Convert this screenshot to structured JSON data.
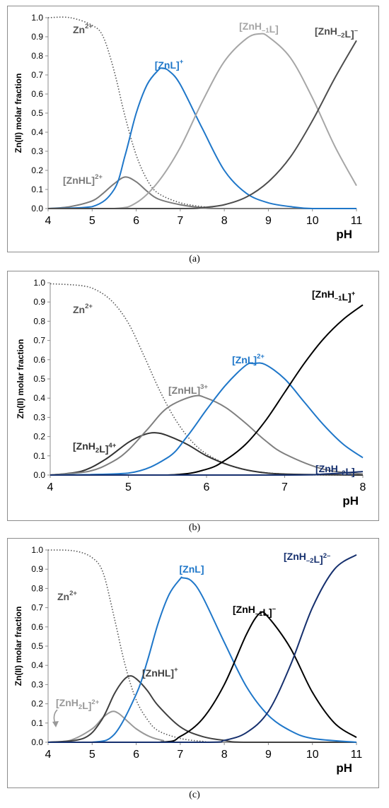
{
  "captions": [
    "(a)",
    "(b)",
    "(c)"
  ],
  "chart_data": [
    {
      "type": "line",
      "xlabel": "pH",
      "ylabel": "Zn(II) molar fraction",
      "xlim": [
        4,
        11
      ],
      "ylim": [
        0,
        1
      ],
      "x_ticks": [
        "4",
        "5",
        "6",
        "7",
        "8",
        "9",
        "10",
        "11"
      ],
      "y_ticks": [
        "0.0",
        "0.1",
        "0.2",
        "0.3",
        "0.4",
        "0.5",
        "0.6",
        "0.7",
        "0.8",
        "0.9",
        "1.0"
      ],
      "grid": false,
      "series": [
        {
          "name": "Zn2+",
          "color": "#555555",
          "dotted": true,
          "points": [
            [
              4.0,
              1.0
            ],
            [
              4.5,
              1.0
            ],
            [
              5.0,
              0.96
            ],
            [
              5.25,
              0.9
            ],
            [
              5.5,
              0.72
            ],
            [
              5.75,
              0.48
            ],
            [
              6.0,
              0.28
            ],
            [
              6.25,
              0.15
            ],
            [
              6.5,
              0.08
            ],
            [
              7.0,
              0.03
            ],
            [
              7.5,
              0.01
            ],
            [
              8.0,
              0.0
            ],
            [
              11.0,
              0.0
            ]
          ]
        },
        {
          "name": "[ZnHL]2+",
          "color": "#7a7a7a",
          "points": [
            [
              4.0,
              0.0
            ],
            [
              4.5,
              0.01
            ],
            [
              5.0,
              0.04
            ],
            [
              5.25,
              0.08
            ],
            [
              5.5,
              0.13
            ],
            [
              5.75,
              0.165
            ],
            [
              6.0,
              0.14
            ],
            [
              6.25,
              0.09
            ],
            [
              6.5,
              0.05
            ],
            [
              7.0,
              0.02
            ],
            [
              7.5,
              0.005
            ],
            [
              8.0,
              0.0
            ],
            [
              11.0,
              0.0
            ]
          ]
        },
        {
          "name": "[ZnL]+",
          "color": "#1f77c9",
          "points": [
            [
              4.0,
              0.0
            ],
            [
              5.0,
              0.01
            ],
            [
              5.5,
              0.1
            ],
            [
              5.75,
              0.28
            ],
            [
              6.0,
              0.5
            ],
            [
              6.25,
              0.65
            ],
            [
              6.5,
              0.725
            ],
            [
              6.6,
              0.735
            ],
            [
              6.75,
              0.72
            ],
            [
              7.0,
              0.65
            ],
            [
              7.5,
              0.42
            ],
            [
              8.0,
              0.2
            ],
            [
              8.5,
              0.08
            ],
            [
              9.0,
              0.03
            ],
            [
              9.5,
              0.01
            ],
            [
              10.0,
              0.0
            ],
            [
              11.0,
              0.0
            ]
          ]
        },
        {
          "name": "[ZnH-1L]",
          "color": "#a6a6a6",
          "points": [
            [
              4.0,
              0.0
            ],
            [
              5.5,
              0.0
            ],
            [
              6.0,
              0.03
            ],
            [
              6.5,
              0.14
            ],
            [
              7.0,
              0.32
            ],
            [
              7.5,
              0.56
            ],
            [
              8.0,
              0.77
            ],
            [
              8.5,
              0.89
            ],
            [
              8.8,
              0.915
            ],
            [
              9.0,
              0.9
            ],
            [
              9.5,
              0.79
            ],
            [
              10.0,
              0.58
            ],
            [
              10.5,
              0.33
            ],
            [
              11.0,
              0.12
            ]
          ]
        },
        {
          "name": "[ZnH-2L]-",
          "color": "#4d4d4d",
          "points": [
            [
              4.0,
              0.0
            ],
            [
              7.0,
              0.0
            ],
            [
              7.5,
              0.005
            ],
            [
              8.0,
              0.02
            ],
            [
              8.5,
              0.06
            ],
            [
              9.0,
              0.14
            ],
            [
              9.5,
              0.27
            ],
            [
              10.0,
              0.46
            ],
            [
              10.5,
              0.68
            ],
            [
              11.0,
              0.88
            ]
          ]
        }
      ]
    },
    {
      "type": "line",
      "xlabel": "pH",
      "ylabel": "Zn(II) molar fraction",
      "xlim": [
        4,
        8
      ],
      "ylim": [
        0,
        1
      ],
      "x_ticks": [
        "4",
        "5",
        "6",
        "7",
        "8"
      ],
      "y_ticks": [
        "0.0",
        "0.1",
        "0.2",
        "0.3",
        "0.4",
        "0.5",
        "0.6",
        "0.7",
        "0.8",
        "0.9",
        "1.0"
      ],
      "grid": false,
      "series": [
        {
          "name": "Zn2+",
          "color": "#555555",
          "dotted": true,
          "points": [
            [
              4.0,
              0.995
            ],
            [
              4.4,
              0.985
            ],
            [
              4.6,
              0.96
            ],
            [
              4.8,
              0.9
            ],
            [
              5.0,
              0.79
            ],
            [
              5.2,
              0.62
            ],
            [
              5.4,
              0.44
            ],
            [
              5.6,
              0.29
            ],
            [
              5.8,
              0.18
            ],
            [
              6.0,
              0.11
            ],
            [
              6.3,
              0.05
            ],
            [
              6.6,
              0.02
            ],
            [
              7.0,
              0.005
            ],
            [
              7.5,
              0.0
            ],
            [
              8.0,
              0.0
            ]
          ]
        },
        {
          "name": "[ZnH2L]4+",
          "color": "#333333",
          "points": [
            [
              4.0,
              0.0
            ],
            [
              4.4,
              0.02
            ],
            [
              4.7,
              0.08
            ],
            [
              5.0,
              0.17
            ],
            [
              5.2,
              0.21
            ],
            [
              5.35,
              0.22
            ],
            [
              5.5,
              0.205
            ],
            [
              5.75,
              0.16
            ],
            [
              6.0,
              0.1
            ],
            [
              6.3,
              0.05
            ],
            [
              6.6,
              0.02
            ],
            [
              7.0,
              0.005
            ],
            [
              8.0,
              0.0
            ]
          ]
        },
        {
          "name": "[ZnHL]3+",
          "color": "#7f7f7f",
          "points": [
            [
              4.0,
              0.0
            ],
            [
              4.5,
              0.02
            ],
            [
              4.8,
              0.07
            ],
            [
              5.0,
              0.13
            ],
            [
              5.25,
              0.24
            ],
            [
              5.5,
              0.35
            ],
            [
              5.83,
              0.41
            ],
            [
              6.0,
              0.4
            ],
            [
              6.25,
              0.35
            ],
            [
              6.5,
              0.27
            ],
            [
              6.75,
              0.18
            ],
            [
              7.0,
              0.11
            ],
            [
              7.5,
              0.03
            ],
            [
              8.0,
              0.005
            ]
          ]
        },
        {
          "name": "[ZnL]2+",
          "color": "#1f77c9",
          "points": [
            [
              4.0,
              0.0
            ],
            [
              5.0,
              0.01
            ],
            [
              5.5,
              0.09
            ],
            [
              5.75,
              0.2
            ],
            [
              6.0,
              0.34
            ],
            [
              6.25,
              0.47
            ],
            [
              6.5,
              0.57
            ],
            [
              6.6,
              0.58
            ],
            [
              6.75,
              0.575
            ],
            [
              7.0,
              0.5
            ],
            [
              7.25,
              0.38
            ],
            [
              7.5,
              0.26
            ],
            [
              7.75,
              0.16
            ],
            [
              8.0,
              0.09
            ]
          ]
        },
        {
          "name": "[ZnH-1L]+",
          "color": "#000000",
          "points": [
            [
              4.0,
              0.0
            ],
            [
              5.5,
              0.0
            ],
            [
              6.0,
              0.03
            ],
            [
              6.25,
              0.08
            ],
            [
              6.5,
              0.16
            ],
            [
              6.75,
              0.28
            ],
            [
              7.0,
              0.43
            ],
            [
              7.25,
              0.58
            ],
            [
              7.5,
              0.71
            ],
            [
              7.75,
              0.81
            ],
            [
              8.0,
              0.885
            ]
          ]
        },
        {
          "name": "[ZnH-2L]",
          "color": "#16306e",
          "points": [
            [
              4.0,
              0.0
            ],
            [
              7.0,
              0.0
            ],
            [
              7.5,
              0.005
            ],
            [
              8.0,
              0.018
            ]
          ]
        }
      ]
    },
    {
      "type": "line",
      "xlabel": "pH",
      "ylabel": "Zn(II) molar fraction",
      "xlim": [
        4,
        11
      ],
      "ylim": [
        0,
        1
      ],
      "x_ticks": [
        "4",
        "5",
        "6",
        "7",
        "8",
        "9",
        "10",
        "11"
      ],
      "y_ticks": [
        "0.0",
        "0.1",
        "0.2",
        "0.3",
        "0.4",
        "0.5",
        "0.6",
        "0.7",
        "0.8",
        "0.9",
        "1.0"
      ],
      "grid": false,
      "series": [
        {
          "name": "Zn2+",
          "color": "#555555",
          "dotted": true,
          "points": [
            [
              4.0,
              1.0
            ],
            [
              4.6,
              0.995
            ],
            [
              5.0,
              0.96
            ],
            [
              5.25,
              0.88
            ],
            [
              5.5,
              0.65
            ],
            [
              5.75,
              0.4
            ],
            [
              6.0,
              0.22
            ],
            [
              6.25,
              0.12
            ],
            [
              6.5,
              0.06
            ],
            [
              7.0,
              0.02
            ],
            [
              7.5,
              0.005
            ],
            [
              8.0,
              0.0
            ],
            [
              11.0,
              0.0
            ]
          ]
        },
        {
          "name": "[ZnH2L]2+",
          "color": "#999999",
          "points": [
            [
              4.0,
              0.0
            ],
            [
              4.5,
              0.01
            ],
            [
              5.0,
              0.07
            ],
            [
              5.25,
              0.13
            ],
            [
              5.45,
              0.16
            ],
            [
              5.6,
              0.15
            ],
            [
              5.8,
              0.11
            ],
            [
              6.0,
              0.07
            ],
            [
              6.3,
              0.03
            ],
            [
              6.6,
              0.01
            ],
            [
              7.0,
              0.0
            ],
            [
              11.0,
              0.0
            ]
          ]
        },
        {
          "name": "[ZnHL]+",
          "color": "#404040",
          "points": [
            [
              4.0,
              0.0
            ],
            [
              4.8,
              0.02
            ],
            [
              5.2,
              0.11
            ],
            [
              5.5,
              0.25
            ],
            [
              5.7,
              0.32
            ],
            [
              5.85,
              0.345
            ],
            [
              6.0,
              0.33
            ],
            [
              6.25,
              0.27
            ],
            [
              6.5,
              0.19
            ],
            [
              7.0,
              0.08
            ],
            [
              7.5,
              0.03
            ],
            [
              8.0,
              0.01
            ],
            [
              8.5,
              0.0
            ],
            [
              11.0,
              0.0
            ]
          ]
        },
        {
          "name": "[ZnL]",
          "color": "#1f77c9",
          "points": [
            [
              4.0,
              0.0
            ],
            [
              5.0,
              0.0
            ],
            [
              5.5,
              0.04
            ],
            [
              6.0,
              0.25
            ],
            [
              6.25,
              0.42
            ],
            [
              6.5,
              0.62
            ],
            [
              6.75,
              0.77
            ],
            [
              7.0,
              0.85
            ],
            [
              7.05,
              0.855
            ],
            [
              7.25,
              0.84
            ],
            [
              7.5,
              0.76
            ],
            [
              8.0,
              0.52
            ],
            [
              8.5,
              0.29
            ],
            [
              9.0,
              0.14
            ],
            [
              9.5,
              0.06
            ],
            [
              10.0,
              0.02
            ],
            [
              11.0,
              0.0
            ]
          ]
        },
        {
          "name": "[ZnH-1L]-",
          "color": "#000000",
          "points": [
            [
              4.0,
              0.0
            ],
            [
              6.5,
              0.0
            ],
            [
              7.0,
              0.03
            ],
            [
              7.5,
              0.12
            ],
            [
              8.0,
              0.3
            ],
            [
              8.5,
              0.56
            ],
            [
              8.8,
              0.67
            ],
            [
              9.0,
              0.65
            ],
            [
              9.5,
              0.49
            ],
            [
              10.0,
              0.26
            ],
            [
              10.5,
              0.1
            ],
            [
              11.0,
              0.025
            ]
          ]
        },
        {
          "name": "[ZnH-2L]2-",
          "color": "#16306e",
          "points": [
            [
              4.0,
              0.0
            ],
            [
              7.5,
              0.0
            ],
            [
              8.0,
              0.01
            ],
            [
              8.5,
              0.05
            ],
            [
              9.0,
              0.16
            ],
            [
              9.5,
              0.4
            ],
            [
              10.0,
              0.7
            ],
            [
              10.5,
              0.9
            ],
            [
              11.0,
              0.975
            ]
          ]
        }
      ]
    }
  ]
}
